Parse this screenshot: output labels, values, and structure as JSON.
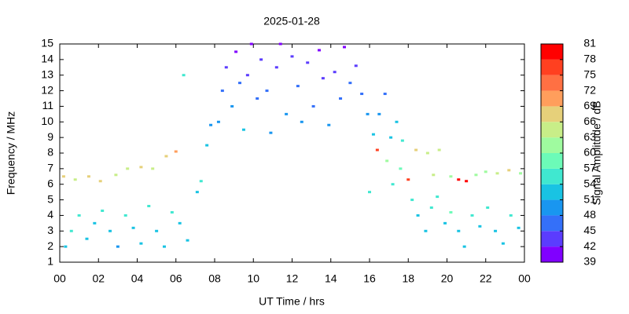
{
  "chart_data": {
    "type": "scatter",
    "title": "2025-01-28",
    "x_label": "UT Time / hrs",
    "y_label": "Frequency / MHz",
    "colorbar_label": "Signal Amplitude / dB",
    "xlim": [
      0,
      24
    ],
    "xticks": [
      {
        "value": 0,
        "label": "00"
      },
      {
        "value": 2,
        "label": "02"
      },
      {
        "value": 4,
        "label": "04"
      },
      {
        "value": 6,
        "label": "06"
      },
      {
        "value": 8,
        "label": "08"
      },
      10,
      12,
      14,
      16,
      18,
      20,
      22,
      {
        "value": 24,
        "label": "00"
      }
    ],
    "ylim": [
      1,
      15
    ],
    "yticks": [
      1,
      2,
      3,
      4,
      5,
      6,
      7,
      8,
      9,
      10,
      11,
      12,
      13,
      14,
      15
    ],
    "clim": [
      39,
      81
    ],
    "cticks": [
      39,
      42,
      45,
      48,
      51,
      54,
      57,
      60,
      63,
      66,
      69,
      72,
      75,
      78,
      81
    ],
    "colors": [
      "#8000ff",
      "#5b3cfe",
      "#3470f9",
      "#1996f0",
      "#19c3e3",
      "#40e8d0",
      "#6cfbb8",
      "#9ffb9f",
      "#c8ee88",
      "#e6d07a",
      "#ff9e5c",
      "#ff7043",
      "#ff4020",
      "#ff0000"
    ],
    "x": [
      0.3,
      0.6,
      1.0,
      1.4,
      1.8,
      2.2,
      2.6,
      3.0,
      3.4,
      3.8,
      4.2,
      4.6,
      5.0,
      5.4,
      5.8,
      6.2,
      6.6,
      0.2,
      0.8,
      1.5,
      2.1,
      2.9,
      3.5,
      4.2,
      4.8,
      5.5,
      6.0,
      6.4,
      7.1,
      7.3,
      7.6,
      7.8,
      8.2,
      8.4,
      8.6,
      8.9,
      9.1,
      9.3,
      9.5,
      9.7,
      9.9,
      10.2,
      10.4,
      10.7,
      10.9,
      11.2,
      11.4,
      11.7,
      12.0,
      12.3,
      12.5,
      12.8,
      13.1,
      13.4,
      13.6,
      13.9,
      14.2,
      14.5,
      14.7,
      15.0,
      15.3,
      15.6,
      15.9,
      16.2,
      16.5,
      16.8,
      17.1,
      17.4,
      17.7,
      16.4,
      16.9,
      17.6,
      17.2,
      16.0,
      18.2,
      18.5,
      18.9,
      19.2,
      19.5,
      19.9,
      20.2,
      20.6,
      20.9,
      21.3,
      21.7,
      22.1,
      22.5,
      22.9,
      23.3,
      23.7,
      18.4,
      19.0,
      19.6,
      20.2,
      20.6,
      21.0,
      21.5,
      22.0,
      22.6,
      23.2,
      23.8,
      19.3,
      18.0
    ],
    "y": [
      2,
      3,
      4,
      2.5,
      3.5,
      4.3,
      3,
      2,
      4,
      3.2,
      2.2,
      4.6,
      3,
      2,
      4.2,
      3.5,
      2.4,
      6.5,
      6.3,
      6.5,
      6.2,
      6.6,
      7,
      7.1,
      7,
      7.8,
      8.1,
      13,
      5.5,
      6.2,
      8.5,
      9.8,
      10,
      12,
      13.5,
      11,
      14.5,
      12.5,
      9.5,
      13,
      15,
      11.5,
      14,
      12,
      9.3,
      13.5,
      15,
      10.5,
      14.2,
      12.3,
      10,
      13.8,
      11,
      14.6,
      12.8,
      9.8,
      13.2,
      11.5,
      14.8,
      12.5,
      13.6,
      11.8,
      10.5,
      9.2,
      10.5,
      11.8,
      9,
      10,
      8.8,
      8.2,
      7.5,
      7,
      6,
      5.5,
      5,
      4,
      3,
      4.5,
      5.2,
      3.5,
      4.2,
      3,
      2,
      4,
      3.3,
      4.5,
      3,
      2.2,
      4,
      3.2,
      8.2,
      8,
      8.2,
      6.5,
      6.3,
      6.2,
      6.6,
      6.8,
      6.7,
      6.9,
      6.7,
      6.6,
      6.3
    ],
    "amplitude": [
      52,
      54,
      55,
      51,
      53,
      56,
      52,
      50,
      55,
      53,
      52,
      54,
      53,
      51,
      54,
      52,
      53,
      66,
      65,
      66,
      68,
      64,
      63,
      66,
      64,
      68,
      70,
      55,
      52,
      54,
      52,
      50,
      48,
      46,
      43,
      48,
      41,
      45,
      52,
      44,
      40,
      47,
      42,
      46,
      50,
      43,
      40,
      48,
      42,
      45,
      49,
      43,
      47,
      41,
      44,
      50,
      44,
      46,
      41,
      45,
      43,
      46,
      49,
      53,
      50,
      47,
      52,
      51,
      54,
      75,
      60,
      58,
      55,
      54,
      54,
      53,
      52,
      55,
      54,
      53,
      58,
      52,
      51,
      55,
      53,
      56,
      52,
      51,
      54,
      53,
      66,
      64,
      65,
      62,
      79,
      78,
      60,
      62,
      63,
      66,
      61,
      63,
      76
    ]
  }
}
